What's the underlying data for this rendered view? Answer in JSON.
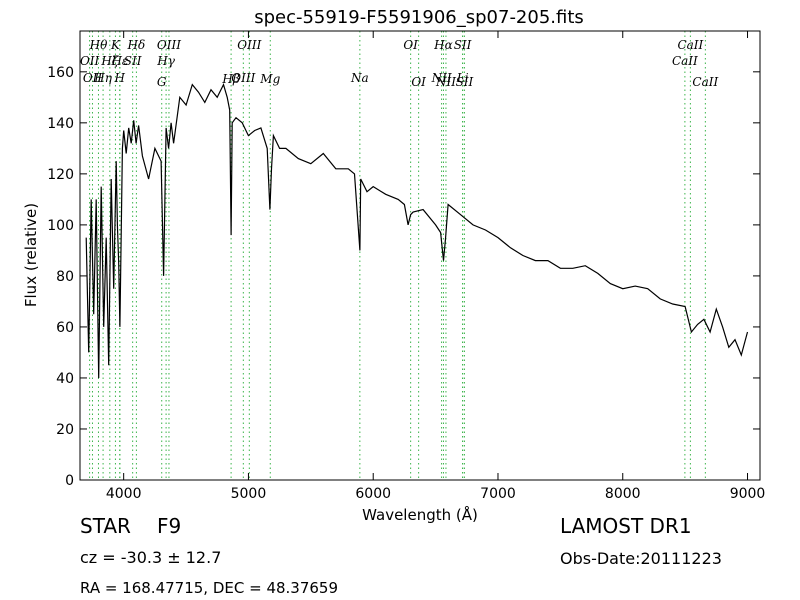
{
  "chart_data": {
    "type": "line",
    "title": "spec-55919-F5591906_sp07-205.fits",
    "xlabel": "Wavelength (Å)",
    "ylabel": "Flux (relative)",
    "xlim": [
      3650,
      9100
    ],
    "ylim": [
      0,
      176
    ],
    "x_ticks": [
      4000,
      5000,
      6000,
      7000,
      8000,
      9000
    ],
    "y_ticks": [
      0,
      20,
      40,
      60,
      80,
      100,
      120,
      140,
      160
    ],
    "grid": false,
    "line_color": "#000000",
    "marker_color": "#3cb44b",
    "series": [
      {
        "x": [
          3700,
          3720,
          3740,
          3760,
          3780,
          3800,
          3820,
          3840,
          3860,
          3880,
          3900,
          3920,
          3940,
          3950,
          3960,
          3970,
          3990,
          4000,
          4020,
          4040,
          4060,
          4080,
          4100,
          4120,
          4150,
          4200,
          4250,
          4300,
          4320,
          4340,
          4360,
          4380,
          4400,
          4450,
          4500,
          4550,
          4600,
          4650,
          4700,
          4750,
          4800,
          4830,
          4850,
          4861,
          4870,
          4900,
          4950,
          5000,
          5050,
          5100,
          5150,
          5172,
          5185,
          5200,
          5250,
          5300,
          5400,
          5500,
          5600,
          5700,
          5800,
          5850,
          5893,
          5900,
          5950,
          6000,
          6100,
          6200,
          6250,
          6280,
          6300,
          6320,
          6400,
          6500,
          6540,
          6563,
          6580,
          6600,
          6700,
          6800,
          6900,
          7000,
          7100,
          7200,
          7300,
          7400,
          7500,
          7600,
          7700,
          7800,
          7900,
          8000,
          8100,
          8200,
          8300,
          8400,
          8500,
          8550,
          8600,
          8650,
          8700,
          8750,
          8800,
          8850,
          8900,
          8950,
          9000
        ],
        "y": [
          95,
          50,
          110,
          65,
          110,
          40,
          115,
          60,
          95,
          45,
          118,
          75,
          125,
          100,
          85,
          60,
          130,
          137,
          128,
          138,
          132,
          141,
          132,
          139,
          127,
          118,
          130,
          125,
          80,
          138,
          130,
          140,
          132,
          150,
          147,
          155,
          152,
          148,
          153,
          150,
          155,
          150,
          145,
          96,
          140,
          142,
          140,
          135,
          137,
          138,
          130,
          106,
          122,
          135,
          130,
          130,
          126,
          124,
          128,
          122,
          122,
          120,
          90,
          118,
          113,
          115,
          112,
          110,
          108,
          100,
          104,
          105,
          106,
          100,
          97,
          86,
          95,
          108,
          104,
          100,
          98,
          95,
          91,
          88,
          86,
          86,
          83,
          83,
          84,
          81,
          77,
          75,
          76,
          75,
          71,
          69,
          68,
          58,
          61,
          63,
          58,
          67,
          60,
          52,
          55,
          49,
          58
        ]
      }
    ],
    "line_markers": [
      {
        "x": 3727,
        "label": "OII",
        "row": 2
      },
      {
        "x": 3750,
        "label": "OII",
        "row": 3
      },
      {
        "x": 3798,
        "label": "Hθ",
        "row": 1
      },
      {
        "x": 3835,
        "label": "Hη",
        "row": 3
      },
      {
        "x": 3889,
        "label": "Hζ",
        "row": 2
      },
      {
        "x": 3934,
        "label": "K",
        "row": 1
      },
      {
        "x": 3968,
        "label": "H",
        "row": 3
      },
      {
        "x": 3970,
        "label": "Hε",
        "row": 2
      },
      {
        "x": 4072,
        "label": "SII",
        "row": 2
      },
      {
        "x": 4102,
        "label": "Hδ",
        "row": 1
      },
      {
        "x": 4305,
        "label": "G",
        "row": 4
      },
      {
        "x": 4340,
        "label": "Hγ",
        "row": 2
      },
      {
        "x": 4363,
        "label": "OIII",
        "row": 1
      },
      {
        "x": 4861,
        "label": "Hβ",
        "row": 5
      },
      {
        "x": 4959,
        "label": "OIII",
        "row": 3
      },
      {
        "x": 5007,
        "label": "OIII",
        "row": 1
      },
      {
        "x": 5175,
        "label": "Mg",
        "row": 5
      },
      {
        "x": 5893,
        "label": "Na",
        "row": 3
      },
      {
        "x": 6300,
        "label": "OI",
        "row": 1
      },
      {
        "x": 6364,
        "label": "OI",
        "row": 4
      },
      {
        "x": 6548,
        "label": "NII",
        "row": 3
      },
      {
        "x": 6563,
        "label": "Hα",
        "row": 1
      },
      {
        "x": 6583,
        "label": "NII",
        "row": 4
      },
      {
        "x": 6716,
        "label": "SII",
        "row": 1
      },
      {
        "x": 6717,
        "label": "Li",
        "row": 3
      },
      {
        "x": 6731,
        "label": "SII",
        "row": 4
      },
      {
        "x": 8498,
        "label": "CaII",
        "row": 2
      },
      {
        "x": 8542,
        "label": "CaII",
        "row": 1
      },
      {
        "x": 8662,
        "label": "CaII",
        "row": 4
      }
    ]
  },
  "footer": {
    "object_class": "STAR",
    "subclass": "F9",
    "survey": "LAMOST DR1",
    "redshift": "cz = -30.3 ± 12.7",
    "obs_date": "Obs-Date:20111223",
    "coords": "RA = 168.47715, DEC = 48.37659"
  }
}
